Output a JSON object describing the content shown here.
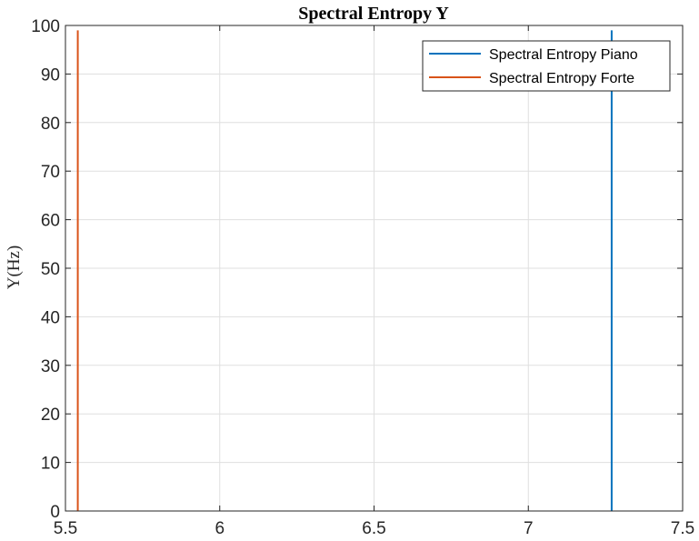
{
  "chart_data": {
    "type": "line",
    "title": "Spectral Entropy Y",
    "xlabel": "",
    "ylabel": "Y(Hz)",
    "xlim": [
      5.5,
      7.5
    ],
    "ylim": [
      0,
      100
    ],
    "x_ticks": [
      "5.5",
      "6",
      "6.5",
      "7",
      "7.5"
    ],
    "y_ticks": [
      "0",
      "10",
      "20",
      "30",
      "40",
      "50",
      "60",
      "70",
      "80",
      "90",
      "100"
    ],
    "grid": true,
    "legend_position": "top-right",
    "series": [
      {
        "name": "Spectral Entropy Piano",
        "color": "#0072BD",
        "x": [
          7.27,
          7.27
        ],
        "y": [
          0,
          99
        ]
      },
      {
        "name": "Spectral Entropy Forte",
        "color": "#D95319",
        "x": [
          5.54,
          5.54
        ],
        "y": [
          0,
          99
        ]
      }
    ]
  }
}
